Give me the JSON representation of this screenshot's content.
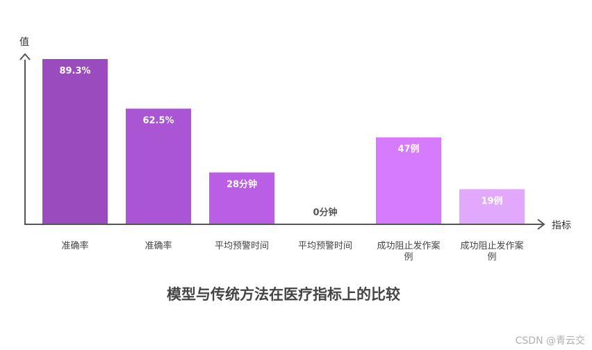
{
  "chart_data": {
    "type": "bar",
    "title": "模型与传统方法在医疗指标上的比较",
    "xlabel": "指标",
    "ylabel": "值",
    "categories": [
      "准确率",
      "准确率",
      "平均预警时间",
      "平均预警时间",
      "成功阻止发作案例",
      "成功阻止发作案例"
    ],
    "values": [
      89.3,
      62.5,
      28,
      0,
      47,
      19
    ],
    "value_labels": [
      "89.3%",
      "62.5%",
      "28分钟",
      "0分钟",
      "47例",
      "19例"
    ],
    "colors": [
      "#9a4bbd",
      "#a955d4",
      "#bb5ee6",
      "#c869f2",
      "#d77bfd",
      "#e2a8fb"
    ],
    "ylim": [
      0,
      89.3
    ],
    "grid": false,
    "legend": "none"
  },
  "watermark": "CSDN @青云交"
}
